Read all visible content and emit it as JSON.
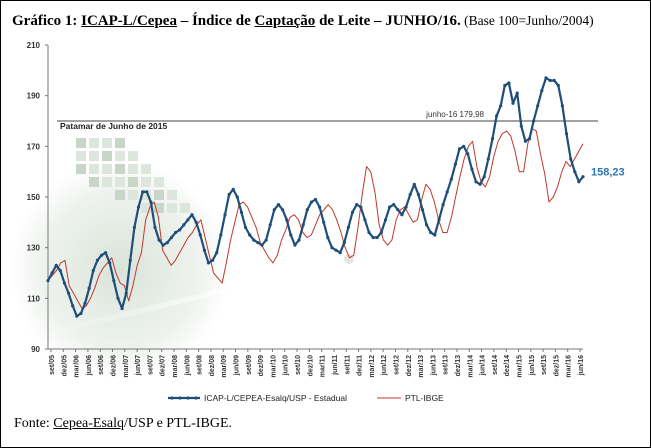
{
  "title": {
    "part1": "Gráfico 1: ",
    "part2": "ICAP-L/Cepea",
    "part3": " – Índice de ",
    "part4": "Captação",
    "part5": " de Leite – JUNHO/16.",
    "subtitle": " (Base 100=Junho/2004)"
  },
  "source": {
    "prefix": "Fonte: ",
    "link": "Cepea-Esalq",
    "suffix": "/USP e PTL-IBGE."
  },
  "chart_data": {
    "type": "line",
    "ylim": [
      90,
      210
    ],
    "yticks": [
      "90",
      "110",
      "130",
      "150",
      "170",
      "190",
      "210"
    ],
    "grid": false,
    "legend": "bottom",
    "x_tick_labels": [
      "set/05",
      "dez/05",
      "mar/06",
      "jun/06",
      "set/06",
      "dez/06",
      "mar/07",
      "jun/07",
      "set/07",
      "dez/07",
      "mar/08",
      "jun/08",
      "set/08",
      "dez/08",
      "mar/09",
      "jun/09",
      "set/09",
      "dez/09",
      "mar/10",
      "jun/10",
      "set/10",
      "dez/10",
      "mar/11",
      "jun/11",
      "set/11",
      "dez/11",
      "mar/12",
      "jun/12",
      "set/12",
      "dez/12",
      "mar/13",
      "jun/13",
      "set/13",
      "dez/13",
      "mar/14",
      "jun/14",
      "set/14",
      "dez/14",
      "mar/15",
      "jun/15",
      "set/15",
      "dez/15",
      "mar/16",
      "jun/16"
    ],
    "series": [
      {
        "name": "ICAP-L/CEPEA-Esalq/USP - Estadual",
        "color": "#1f4e79",
        "values": [
          117,
          120,
          123,
          121,
          116,
          112,
          107,
          103,
          104,
          108,
          114,
          121,
          125,
          127,
          128,
          124,
          117,
          110,
          106,
          112,
          125,
          138,
          146,
          152,
          152,
          148,
          138,
          133,
          131,
          132,
          134,
          136,
          137,
          139,
          141,
          143,
          140,
          135,
          129,
          124,
          125,
          128,
          135,
          143,
          151,
          153,
          150,
          144,
          138,
          135,
          133,
          132,
          131,
          133,
          139,
          145,
          147,
          145,
          141,
          135,
          131,
          133,
          139,
          145,
          148,
          149,
          146,
          140,
          134,
          130,
          129,
          128,
          132,
          138,
          144,
          147,
          146,
          141,
          136,
          134,
          134,
          136,
          141,
          146,
          147,
          145,
          143,
          146,
          151,
          155,
          151,
          145,
          139,
          136,
          135,
          141,
          147,
          152,
          157,
          163,
          169,
          170,
          167,
          161,
          156,
          155,
          158,
          165,
          173,
          182,
          186,
          194,
          195,
          187,
          191,
          178,
          172,
          173,
          180,
          186,
          192,
          197,
          196,
          196,
          194,
          186,
          175,
          165,
          160,
          156,
          158
        ],
        "end_label": "158,23"
      },
      {
        "name": "PTL-IBGE",
        "color": "#c0392b",
        "values": [
          117,
          119,
          121,
          124,
          125,
          115,
          112,
          109,
          106,
          107,
          110,
          114,
          119,
          122,
          124,
          126,
          120,
          116,
          115,
          109,
          115,
          123,
          128,
          141,
          146,
          148,
          142,
          129,
          126,
          123,
          125,
          128,
          131,
          134,
          136,
          139,
          141,
          134,
          127,
          120,
          118,
          116,
          124,
          133,
          140,
          147,
          148,
          146,
          142,
          138,
          132,
          129,
          126,
          124,
          127,
          133,
          137,
          142,
          143,
          141,
          136,
          134,
          135,
          139,
          143,
          145,
          147,
          145,
          141,
          136,
          130,
          126,
          127,
          138,
          151,
          162,
          160,
          152,
          139,
          133,
          131,
          133,
          141,
          145,
          146,
          143,
          140,
          141,
          149,
          155,
          153,
          148,
          141,
          136,
          136,
          142,
          150,
          158,
          165,
          170,
          172,
          162,
          156,
          154,
          158,
          166,
          172,
          175,
          176,
          174,
          168,
          160,
          160,
          171,
          177,
          176,
          167,
          159,
          148,
          150,
          154,
          160,
          164,
          162,
          165,
          168,
          171
        ],
        "end_label": ""
      }
    ],
    "reference_lines": [
      {
        "label": "junho-16 179,98",
        "value": 179.98
      },
      {
        "label": "Patamar de Junho de 2015",
        "value": 179.98
      }
    ]
  },
  "colors": {
    "primary": "#1f4e79",
    "secondary": "#c0392b",
    "end_label": "#2e75b6"
  }
}
